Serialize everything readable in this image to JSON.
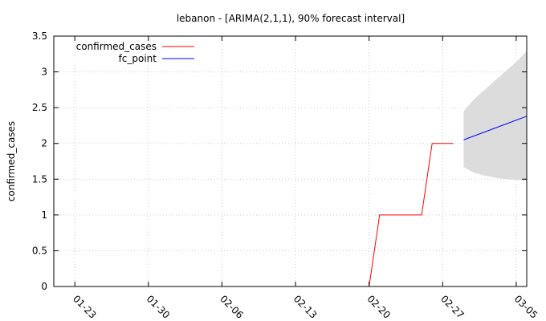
{
  "chart_data": {
    "type": "line",
    "title": "lebanon -  [ARIMA(2,1,1), 90% forecast interval]",
    "xlabel": "",
    "ylabel": "confirmed_cases",
    "x_axis": {
      "type": "date",
      "range": [
        "2020-01-21",
        "2020-03-06"
      ]
    },
    "x_ticks": [
      {
        "date": "2020-01-23",
        "label": "01-23"
      },
      {
        "date": "2020-01-30",
        "label": "01-30"
      },
      {
        "date": "2020-02-06",
        "label": "02-06"
      },
      {
        "date": "2020-02-13",
        "label": "02-13"
      },
      {
        "date": "2020-02-20",
        "label": "02-20"
      },
      {
        "date": "2020-02-27",
        "label": "02-27"
      },
      {
        "date": "2020-03-05",
        "label": "03-05"
      }
    ],
    "ylim": [
      0,
      3.5
    ],
    "y_ticks": [
      {
        "value": 0,
        "label": "0"
      },
      {
        "value": 0.5,
        "label": "0.5"
      },
      {
        "value": 1,
        "label": "1"
      },
      {
        "value": 1.5,
        "label": "1.5"
      },
      {
        "value": 2,
        "label": "2"
      },
      {
        "value": 2.5,
        "label": "2.5"
      },
      {
        "value": 3,
        "label": "3"
      },
      {
        "value": 3.5,
        "label": "3.5"
      }
    ],
    "grid": true,
    "legend_position": "top-left",
    "series": [
      {
        "name": "confirmed_cases",
        "color": "#ff0000",
        "points": [
          {
            "x": "2020-02-20",
            "y": 0
          },
          {
            "x": "2020-02-21",
            "y": 1
          },
          {
            "x": "2020-02-25",
            "y": 1
          },
          {
            "x": "2020-02-26",
            "y": 2
          },
          {
            "x": "2020-02-28",
            "y": 2
          }
        ]
      },
      {
        "name": "fc_point",
        "color": "#0000ff",
        "points": [
          {
            "x": "2020-02-29",
            "y": 2.05
          },
          {
            "x": "2020-03-06",
            "y": 2.38
          }
        ]
      }
    ],
    "forecast_interval": {
      "color": "#dcdcdc",
      "points": [
        {
          "x": "2020-02-29",
          "lower": 1.67,
          "upper": 2.45
        },
        {
          "x": "2020-03-01",
          "lower": 1.59,
          "upper": 2.62
        },
        {
          "x": "2020-03-02",
          "lower": 1.55,
          "upper": 2.75
        },
        {
          "x": "2020-03-03",
          "lower": 1.52,
          "upper": 2.88
        },
        {
          "x": "2020-03-04",
          "lower": 1.5,
          "upper": 3.01
        },
        {
          "x": "2020-03-05",
          "lower": 1.49,
          "upper": 3.14
        },
        {
          "x": "2020-03-06",
          "lower": 1.48,
          "upper": 3.29
        }
      ]
    }
  }
}
